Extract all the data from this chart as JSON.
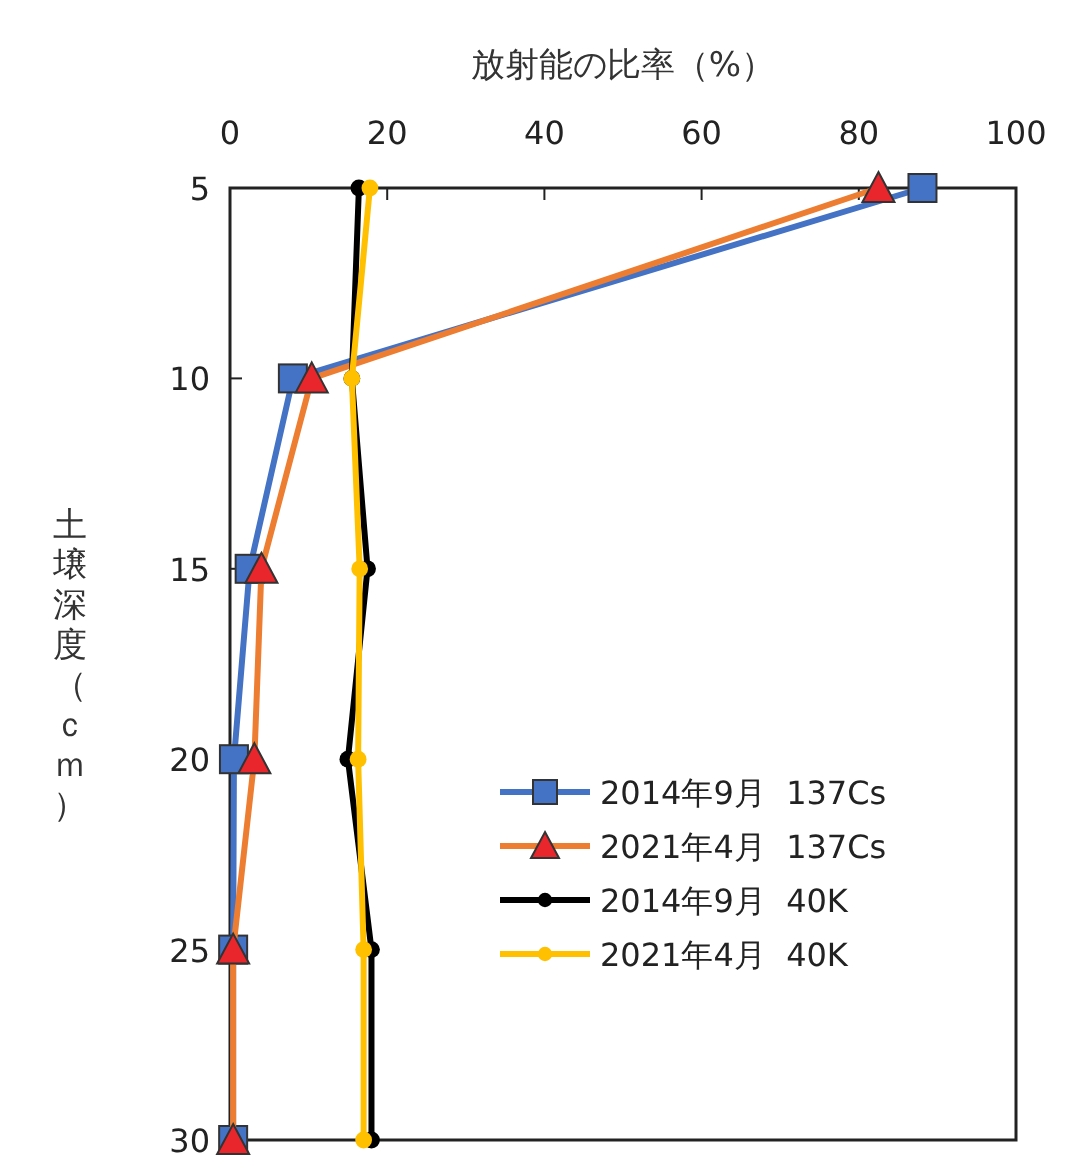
{
  "chart_data": {
    "type": "line",
    "xlabel": "放射能の比率（%）",
    "ylabel": "土壌深度（ｃｍ）",
    "xlim": [
      0,
      100
    ],
    "xticks": [
      0,
      20,
      40,
      60,
      80,
      100
    ],
    "ylim": [
      30,
      5
    ],
    "yticks": [
      5,
      10,
      15,
      20,
      25,
      30
    ],
    "grid": false,
    "legend": "bottom right",
    "line_style": "solid",
    "series": [
      {
        "name": "2014年9月  137Cs",
        "color": "#4472c4",
        "marker": "square",
        "x": [
          88.1,
          8.0,
          2.5,
          0.5,
          0.4,
          0.4
        ],
        "values": [
          5,
          10,
          15,
          20,
          25,
          30
        ]
      },
      {
        "name": "2021年4月  137Cs",
        "color": "#ed7d31",
        "marker": "triangle",
        "x": [
          82.5,
          10.4,
          4.0,
          3.1,
          0.4,
          0.4
        ],
        "values": [
          5,
          10,
          15,
          20,
          25,
          30
        ]
      },
      {
        "name": "2014年9月  40K",
        "color": "#000000",
        "marker": "circle",
        "x": [
          16.4,
          15.5,
          17.5,
          15.0,
          18.0,
          18.0
        ],
        "values": [
          5,
          10,
          15,
          20,
          25,
          30
        ]
      },
      {
        "name": "2021年4月  40K",
        "color": "#ffc000",
        "marker": "circle",
        "x": [
          17.8,
          15.5,
          16.5,
          16.3,
          17.0,
          17.0
        ],
        "values": [
          5,
          10,
          15,
          20,
          25,
          30
        ]
      }
    ]
  }
}
